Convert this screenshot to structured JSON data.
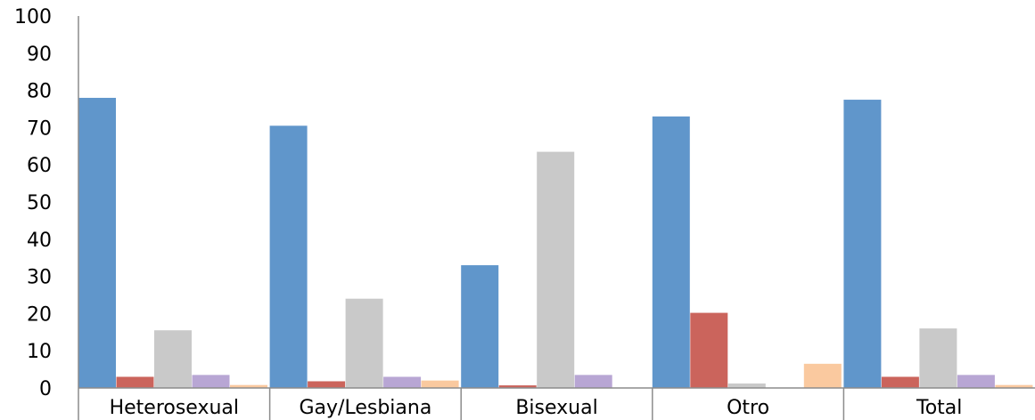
{
  "chart_data": {
    "type": "bar",
    "categories": [
      "Heterosexual",
      "Gay/Lesbiana",
      "Bisexual",
      "Otro",
      "Total"
    ],
    "ylim": [
      0,
      100
    ],
    "yticks": [
      0,
      10,
      20,
      30,
      40,
      50,
      60,
      70,
      80,
      90,
      100
    ],
    "grid": false,
    "legend": "none",
    "series": [
      {
        "color": "#6096cb",
        "values": [
          78,
          70.5,
          33,
          73,
          77.5
        ]
      },
      {
        "color": "#cb645c",
        "values": [
          3,
          1.8,
          0.7,
          20.2,
          3
        ]
      },
      {
        "color": "#c9c9c9",
        "values": [
          15.5,
          24,
          63.5,
          1.2,
          16
        ]
      },
      {
        "color": "#b8a6d4",
        "values": [
          3.5,
          3,
          3.5,
          0,
          3.5
        ]
      },
      {
        "color": "#fac99f",
        "values": [
          0.8,
          2,
          0,
          6.5,
          0.8
        ]
      }
    ]
  }
}
